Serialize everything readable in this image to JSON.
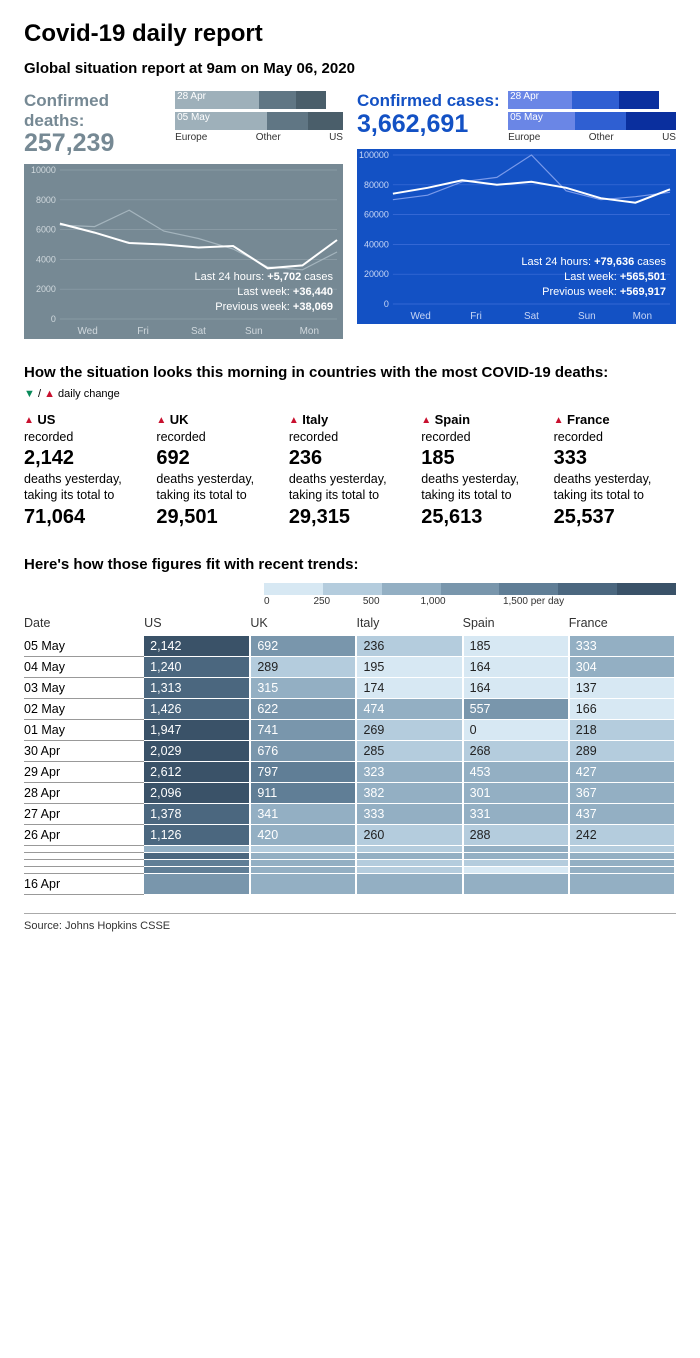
{
  "title": "Covid-19 daily report",
  "subtitle": "Global situation report at 9am on May 06, 2020",
  "panels": {
    "deaths": {
      "label": "Confirmed deaths:",
      "value": "257,239",
      "label_color": "#768994",
      "bg_color": "#768994",
      "stack": {
        "rows": [
          {
            "label": "28 Apr",
            "segs": [
              {
                "w": 50,
                "c": "#9eb0ba"
              },
              {
                "w": 22,
                "c": "#607684"
              },
              {
                "w": 18,
                "c": "#4a5e6a"
              }
            ]
          },
          {
            "label": "05 May",
            "segs": [
              {
                "w": 55,
                "c": "#9eb0ba"
              },
              {
                "w": 24,
                "c": "#607684"
              },
              {
                "w": 21,
                "c": "#4a5e6a"
              }
            ]
          }
        ],
        "legend": [
          "Europe",
          "Other",
          "US"
        ]
      },
      "chart": {
        "ylim": [
          0,
          10000
        ],
        "yticks": [
          0,
          2000,
          4000,
          6000,
          8000,
          10000
        ],
        "xlabels": [
          "Wed",
          "Fri",
          "Sat",
          "Sun",
          "Mon"
        ],
        "series_main": [
          6400,
          5800,
          5100,
          5000,
          4800,
          4900,
          3400,
          3600,
          5300
        ],
        "series_faint": [
          6300,
          6200,
          7300,
          5900,
          5400,
          4700,
          3500,
          3300,
          4500
        ],
        "grid_color": "#8fa0aa",
        "line_color": "#ffffff",
        "faint_color": "#a4b4bd",
        "tick_color": "#d0d8dd",
        "overlay": {
          "l1_pre": "Last 24 hours: ",
          "l1_b": "+5,702",
          "l1_post": " cases",
          "l2_pre": "Last week: ",
          "l2_b": "+36,440",
          "l3_pre": "Previous week: ",
          "l3_b": "+38,069"
        }
      }
    },
    "cases": {
      "label": "Confirmed cases:",
      "value": "3,662,691",
      "label_color": "#1351c4",
      "bg_color": "#1351c4",
      "stack": {
        "rows": [
          {
            "label": "28 Apr",
            "segs": [
              {
                "w": 38,
                "c": "#6a86e6"
              },
              {
                "w": 28,
                "c": "#2f5fd2"
              },
              {
                "w": 24,
                "c": "#0a2f9e"
              }
            ]
          },
          {
            "label": "05 May",
            "segs": [
              {
                "w": 40,
                "c": "#6a86e6"
              },
              {
                "w": 30,
                "c": "#2f5fd2"
              },
              {
                "w": 30,
                "c": "#0a2f9e"
              }
            ]
          }
        ],
        "legend": [
          "Europe",
          "Other",
          "US"
        ]
      },
      "chart": {
        "ylim": [
          0,
          100000
        ],
        "yticks": [
          0,
          20000,
          40000,
          60000,
          80000,
          100000
        ],
        "xlabels": [
          "Wed",
          "Fri",
          "Sat",
          "Sun",
          "Mon"
        ],
        "series_main": [
          74000,
          78000,
          83000,
          80000,
          82000,
          78000,
          71000,
          68000,
          77000
        ],
        "series_faint": [
          70000,
          73000,
          82000,
          85000,
          100000,
          76000,
          70000,
          72000,
          75000
        ],
        "grid_color": "#3f6fd9",
        "line_color": "#ffffff",
        "faint_color": "#7a9aea",
        "tick_color": "#c8d6f5",
        "overlay": {
          "l1_pre": "Last 24 hours: ",
          "l1_b": "+79,636",
          "l1_post": " cases",
          "l2_pre": "Last week: ",
          "l2_b": "+565,501",
          "l3_pre": "Previous week: ",
          "l3_b": "+569,917"
        }
      }
    }
  },
  "countries_title": "How the situation looks this morning in countries with the most COVID-19 deaths:",
  "legend_change": "▼ / ▲ daily change",
  "countries": [
    {
      "dir": "up",
      "name": "US",
      "daily": "2,142",
      "total": "71,064"
    },
    {
      "dir": "up",
      "name": "UK",
      "daily": "692",
      "total": "29,501"
    },
    {
      "dir": "up",
      "name": "Italy",
      "daily": "236",
      "total": "29,315"
    },
    {
      "dir": "up",
      "name": "Spain",
      "daily": "185",
      "total": "25,613"
    },
    {
      "dir": "up",
      "name": "France",
      "daily": "333",
      "total": "25,537"
    }
  ],
  "country_text": {
    "recorded": "recorded",
    "deaths_yesterday": "deaths yesterday, taking its total to"
  },
  "trends_title": "Here's how those figures fit with recent trends:",
  "scale": {
    "colors": [
      "#d7e8f3",
      "#b4ccdd",
      "#93afc3",
      "#7996ac",
      "#607e96",
      "#4b677f",
      "#3a5268"
    ],
    "labels": [
      "0",
      "250",
      "500",
      "1,000",
      "1,500 per day"
    ]
  },
  "table": {
    "columns": [
      "Date",
      "US",
      "UK",
      "Italy",
      "Spain",
      "France"
    ],
    "rows": [
      {
        "date": "05 May",
        "v": [
          "2,142",
          "692",
          "236",
          "185",
          "333"
        ]
      },
      {
        "date": "04 May",
        "v": [
          "1,240",
          "289",
          "195",
          "164",
          "304"
        ]
      },
      {
        "date": "03 May",
        "v": [
          "1,313",
          "315",
          "174",
          "164",
          "137"
        ]
      },
      {
        "date": "02 May",
        "v": [
          "1,426",
          "622",
          "474",
          "557",
          "166"
        ]
      },
      {
        "date": "01 May",
        "v": [
          "1,947",
          "741",
          "269",
          "0",
          "218"
        ]
      },
      {
        "date": "30 Apr",
        "v": [
          "2,029",
          "676",
          "285",
          "268",
          "289"
        ]
      },
      {
        "date": "29 Apr",
        "v": [
          "2,612",
          "797",
          "323",
          "453",
          "427"
        ]
      },
      {
        "date": "28 Apr",
        "v": [
          "2,096",
          "911",
          "382",
          "301",
          "367"
        ]
      },
      {
        "date": "27 Apr",
        "v": [
          "1,378",
          "341",
          "333",
          "331",
          "437"
        ]
      },
      {
        "date": "26 Apr",
        "v": [
          "1,126",
          "420",
          "260",
          "288",
          "242"
        ]
      }
    ],
    "blank_rows": [
      {
        "date": "",
        "v": [
          480,
          260,
          260,
          300,
          260
        ]
      },
      {
        "date": "",
        "v": [
          1000,
          400,
          300,
          320,
          350
        ]
      },
      {
        "date": "",
        "v": [
          900,
          350,
          280,
          280,
          320
        ]
      },
      {
        "date": "",
        "v": [
          800,
          300,
          270,
          120,
          340
        ]
      },
      {
        "date": "16 Apr",
        "v": [
          700,
          380,
          300,
          300,
          310
        ]
      }
    ]
  },
  "source": "Source: Johns Hopkins CSSE"
}
